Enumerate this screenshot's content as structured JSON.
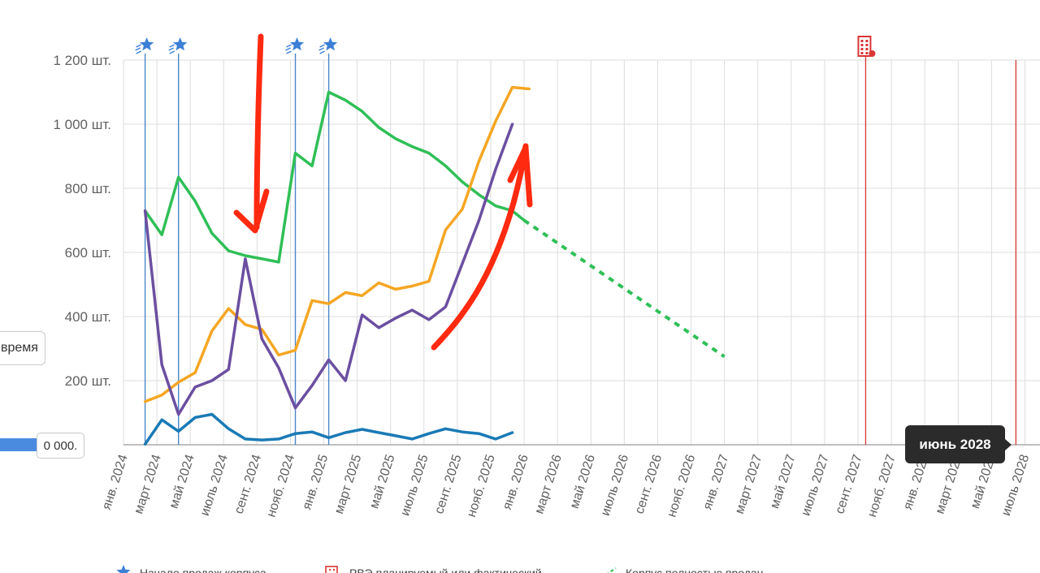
{
  "chart_data": {
    "type": "line",
    "title": "",
    "xlabel": "",
    "ylabel": "",
    "y_unit": "шт.",
    "ylim": [
      0,
      1200
    ],
    "yticks": [
      {
        "value": 200,
        "label": "200 шт."
      },
      {
        "value": 400,
        "label": "400 шт."
      },
      {
        "value": 600,
        "label": "600 шт."
      },
      {
        "value": 800,
        "label": "800 шт."
      },
      {
        "value": 1000,
        "label": "1 000 шт."
      },
      {
        "value": 1200,
        "label": "1 200 шт."
      }
    ],
    "xlim": [
      "2024-01",
      "2028-08"
    ],
    "xticks": [
      {
        "date": "2024-01",
        "label": "янв. 2024"
      },
      {
        "date": "2024-03",
        "label": "март 2024"
      },
      {
        "date": "2024-05",
        "label": "май 2024"
      },
      {
        "date": "2024-07",
        "label": "июль 2024"
      },
      {
        "date": "2024-09",
        "label": "сент. 2024"
      },
      {
        "date": "2024-11",
        "label": "нояб. 2024"
      },
      {
        "date": "2025-01",
        "label": "янв. 2025"
      },
      {
        "date": "2025-03",
        "label": "март 2025"
      },
      {
        "date": "2025-05",
        "label": "май 2025"
      },
      {
        "date": "2025-07",
        "label": "июль 2025"
      },
      {
        "date": "2025-09",
        "label": "сент. 2025"
      },
      {
        "date": "2025-11",
        "label": "нояб. 2025"
      },
      {
        "date": "2026-01",
        "label": "янв. 2026"
      },
      {
        "date": "2026-03",
        "label": "март 2026"
      },
      {
        "date": "2026-05",
        "label": "май 2026"
      },
      {
        "date": "2026-07",
        "label": "июль 2026"
      },
      {
        "date": "2026-09",
        "label": "сент. 2026"
      },
      {
        "date": "2026-11",
        "label": "нояб. 2026"
      },
      {
        "date": "2027-01",
        "label": "янв. 2027"
      },
      {
        "date": "2027-03",
        "label": "март 2027"
      },
      {
        "date": "2027-05",
        "label": "май 2027"
      },
      {
        "date": "2027-07",
        "label": "июль 2027"
      },
      {
        "date": "2027-09",
        "label": "сент. 2027"
      },
      {
        "date": "2027-11",
        "label": "нояб. 2027"
      },
      {
        "date": "2028-01",
        "label": "янв. 2028"
      },
      {
        "date": "2028-03",
        "label": "март 2028"
      },
      {
        "date": "2028-05",
        "label": "май 2028"
      },
      {
        "date": "2028-07",
        "label": "июль 2028"
      }
    ],
    "grid": true,
    "series": [
      {
        "color": "#2fbf57",
        "values": [
          [
            "2024-02-10",
            730
          ],
          [
            "2024-03-10",
            655
          ],
          [
            "2024-04-10",
            835
          ],
          [
            "2024-05-10",
            760
          ],
          [
            "2024-06-10",
            660
          ],
          [
            "2024-07-10",
            605
          ],
          [
            "2024-08-10",
            590
          ],
          [
            "2024-09-10",
            580
          ],
          [
            "2024-10-10",
            570
          ],
          [
            "2024-11-10",
            910
          ],
          [
            "2024-12-10",
            870
          ],
          [
            "2025-01-10",
            1100
          ],
          [
            "2025-02-10",
            1075
          ],
          [
            "2025-03-10",
            1040
          ],
          [
            "2025-04-10",
            990
          ],
          [
            "2025-05-10",
            955
          ],
          [
            "2025-06-10",
            930
          ],
          [
            "2025-07-10",
            910
          ],
          [
            "2025-08-10",
            870
          ],
          [
            "2025-09-10",
            820
          ],
          [
            "2025-10-10",
            780
          ],
          [
            "2025-11-10",
            745
          ],
          [
            "2025-12-10",
            730
          ],
          [
            "2026-01-01",
            700
          ]
        ],
        "forecast": [
          [
            "2026-01-01",
            700
          ],
          [
            "2027-01-01",
            275
          ]
        ]
      },
      {
        "color": "#f5a623",
        "values": [
          [
            "2024-02-10",
            135
          ],
          [
            "2024-03-10",
            155
          ],
          [
            "2024-04-10",
            195
          ],
          [
            "2024-05-10",
            225
          ],
          [
            "2024-06-10",
            355
          ],
          [
            "2024-07-10",
            425
          ],
          [
            "2024-08-10",
            375
          ],
          [
            "2024-09-10",
            360
          ],
          [
            "2024-10-10",
            280
          ],
          [
            "2024-11-10",
            295
          ],
          [
            "2024-12-10",
            450
          ],
          [
            "2025-01-10",
            440
          ],
          [
            "2025-02-10",
            475
          ],
          [
            "2025-03-10",
            465
          ],
          [
            "2025-04-10",
            505
          ],
          [
            "2025-05-10",
            485
          ],
          [
            "2025-06-10",
            495
          ],
          [
            "2025-07-10",
            510
          ],
          [
            "2025-08-10",
            670
          ],
          [
            "2025-09-10",
            735
          ],
          [
            "2025-10-10",
            885
          ],
          [
            "2025-11-10",
            1010
          ],
          [
            "2025-12-10",
            1115
          ],
          [
            "2026-01-10",
            1110
          ]
        ]
      },
      {
        "color": "#6b4fa0",
        "values": [
          [
            "2024-02-10",
            730
          ],
          [
            "2024-03-10",
            250
          ],
          [
            "2024-04-10",
            95
          ],
          [
            "2024-05-10",
            180
          ],
          [
            "2024-06-10",
            200
          ],
          [
            "2024-07-10",
            235
          ],
          [
            "2024-08-10",
            580
          ],
          [
            "2024-09-10",
            330
          ],
          [
            "2024-10-10",
            240
          ],
          [
            "2024-11-10",
            115
          ],
          [
            "2024-12-10",
            185
          ],
          [
            "2025-01-10",
            265
          ],
          [
            "2025-02-10",
            200
          ],
          [
            "2025-03-10",
            405
          ],
          [
            "2025-04-10",
            365
          ],
          [
            "2025-05-10",
            395
          ],
          [
            "2025-06-10",
            420
          ],
          [
            "2025-07-10",
            390
          ],
          [
            "2025-08-10",
            430
          ],
          [
            "2025-09-10",
            565
          ],
          [
            "2025-10-10",
            700
          ],
          [
            "2025-11-10",
            860
          ],
          [
            "2025-12-10",
            1000
          ]
        ]
      },
      {
        "color": "#1a7ab5",
        "values": [
          [
            "2024-02-10",
            2
          ],
          [
            "2024-03-10",
            78
          ],
          [
            "2024-04-10",
            42
          ],
          [
            "2024-05-10",
            85
          ],
          [
            "2024-06-10",
            95
          ],
          [
            "2024-07-10",
            50
          ],
          [
            "2024-08-10",
            18
          ],
          [
            "2024-09-10",
            15
          ],
          [
            "2024-10-10",
            18
          ],
          [
            "2024-11-10",
            35
          ],
          [
            "2024-12-10",
            40
          ],
          [
            "2025-01-10",
            22
          ],
          [
            "2025-02-10",
            38
          ],
          [
            "2025-03-10",
            48
          ],
          [
            "2025-04-10",
            38
          ],
          [
            "2025-05-10",
            28
          ],
          [
            "2025-06-10",
            18
          ],
          [
            "2025-07-10",
            35
          ],
          [
            "2025-08-10",
            50
          ],
          [
            "2025-09-10",
            40
          ],
          [
            "2025-10-10",
            35
          ],
          [
            "2025-11-10",
            18
          ],
          [
            "2025-12-10",
            38
          ]
        ]
      }
    ],
    "sales_start_markers": [
      "2024-02-10",
      "2024-04-10",
      "2024-11-10",
      "2025-01-10"
    ],
    "rve_markers": [
      "2027-09-15",
      "2028-06-15"
    ],
    "tooltip": "июнь 2028",
    "legend": [
      {
        "icon": "star-icon",
        "color": "#3b7fd6",
        "label": "Начало продаж корпуса"
      },
      {
        "icon": "building-icon",
        "color": "#d93636",
        "label": "РВЭ планируемый или фактический"
      },
      {
        "icon": "dashed-line-icon",
        "color": "#2fbf57",
        "label": "Корпус полностью продан"
      }
    ]
  },
  "side_controls": {
    "button_label": "время",
    "value_label": "0 000."
  },
  "annotations": {
    "color": "#ff2a10"
  }
}
